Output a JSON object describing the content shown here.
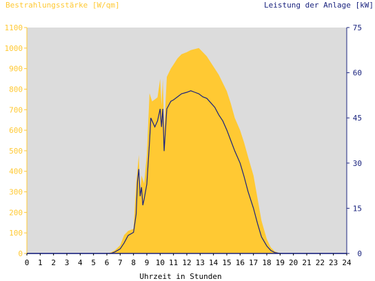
{
  "colors": {
    "irradiance": "#ffc933",
    "power": "#1a237e",
    "plot_bg": "#dcdcdc",
    "axis_text_left": "#ffc933",
    "axis_text_right": "#1a237e"
  },
  "chart_data": {
    "type": "area",
    "title_left": "Bestrahlungsstärke [W/qm]",
    "title_right": "Leistung der Anlage [kW]",
    "xlabel": "Uhrzeit in Stunden",
    "xlim": [
      0,
      24
    ],
    "ylim_left": [
      0,
      1100
    ],
    "ylim_right": [
      0,
      75
    ],
    "x_ticks": [
      0,
      1,
      2,
      3,
      4,
      5,
      6,
      7,
      8,
      9,
      10,
      11,
      12,
      13,
      14,
      15,
      16,
      17,
      18,
      19,
      20,
      21,
      22,
      23,
      24
    ],
    "y_ticks_left": [
      0,
      100,
      200,
      300,
      400,
      500,
      600,
      700,
      800,
      900,
      1000,
      1100
    ],
    "y_ticks_right": [
      0,
      15,
      30,
      45,
      60,
      75
    ],
    "grid": false,
    "series": [
      {
        "name": "Bestrahlungsstärke [W/qm]",
        "axis": "left",
        "kind": "area",
        "x": [
          0,
          6.0,
          6.3,
          6.6,
          7.0,
          7.3,
          7.6,
          8.0,
          8.2,
          8.4,
          8.5,
          8.6,
          8.8,
          9.0,
          9.2,
          9.4,
          9.6,
          9.8,
          10.0,
          10.1,
          10.2,
          10.3,
          10.5,
          10.8,
          11.0,
          11.3,
          11.6,
          12.0,
          12.3,
          12.6,
          12.9,
          13.2,
          13.5,
          13.8,
          14.1,
          14.4,
          14.7,
          15.0,
          15.3,
          15.6,
          16.0,
          16.3,
          16.6,
          17.0,
          17.3,
          17.6,
          18.0,
          18.3,
          18.6,
          19.0,
          24
        ],
        "y": [
          0,
          0,
          5,
          15,
          40,
          90,
          110,
          120,
          340,
          480,
          300,
          380,
          340,
          480,
          780,
          740,
          750,
          760,
          850,
          720,
          850,
          600,
          860,
          900,
          920,
          950,
          970,
          980,
          990,
          995,
          1000,
          980,
          960,
          930,
          900,
          870,
          830,
          790,
          730,
          660,
          600,
          540,
          470,
          380,
          270,
          160,
          70,
          30,
          10,
          0,
          0
        ]
      },
      {
        "name": "Leistung der Anlage [kW]",
        "axis": "right",
        "kind": "line",
        "x": [
          0,
          6.3,
          6.6,
          7.0,
          7.3,
          7.6,
          8.0,
          8.2,
          8.3,
          8.4,
          8.5,
          8.6,
          8.7,
          8.8,
          9.0,
          9.2,
          9.3,
          9.4,
          9.6,
          9.8,
          10.0,
          10.1,
          10.2,
          10.3,
          10.5,
          10.8,
          11.0,
          11.3,
          11.6,
          12.0,
          12.3,
          12.6,
          12.9,
          13.2,
          13.5,
          13.8,
          14.1,
          14.4,
          14.7,
          15.0,
          15.3,
          15.6,
          16.0,
          16.3,
          16.6,
          17.0,
          17.3,
          17.6,
          18.0,
          18.3,
          18.6,
          19.0,
          24
        ],
        "y": [
          0,
          0,
          0.5,
          1.5,
          3.5,
          6.0,
          7.0,
          13.0,
          24.0,
          28.0,
          19.0,
          22.0,
          16.0,
          18.0,
          23.0,
          37.0,
          45.0,
          44.0,
          42.0,
          44.0,
          48.0,
          42.0,
          48.0,
          34.0,
          48.0,
          50.5,
          51.0,
          52.0,
          53.0,
          53.5,
          54.0,
          53.5,
          53.0,
          52.0,
          51.5,
          50.0,
          48.5,
          46.0,
          44.0,
          41.0,
          37.5,
          34.0,
          30.0,
          25.5,
          20.5,
          15.0,
          10.0,
          5.5,
          2.5,
          1.0,
          0.3,
          0,
          0
        ]
      }
    ]
  }
}
